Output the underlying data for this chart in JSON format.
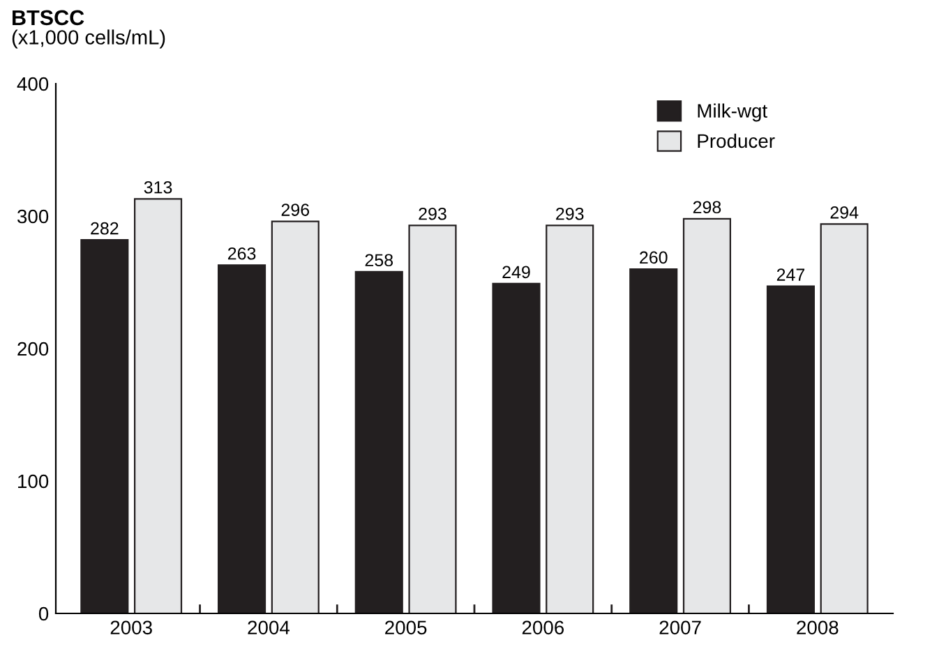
{
  "chart_data": {
    "type": "bar",
    "title": "BTSCC",
    "ylabel": "(x1,000 cells/mL)",
    "categories": [
      "2003",
      "2004",
      "2005",
      "2006",
      "2007",
      "2008"
    ],
    "series": [
      {
        "name": "Milk-wgt",
        "color": "#231f20",
        "values": [
          282,
          263,
          258,
          249,
          260,
          247
        ]
      },
      {
        "name": "Producer",
        "color": "#e6e7e8",
        "values": [
          313,
          296,
          293,
          293,
          298,
          294
        ]
      }
    ],
    "ylim": [
      0,
      400
    ],
    "yticks": [
      0,
      100,
      200,
      300,
      400
    ],
    "data_labels": true,
    "legend": "top right",
    "grid": false
  }
}
